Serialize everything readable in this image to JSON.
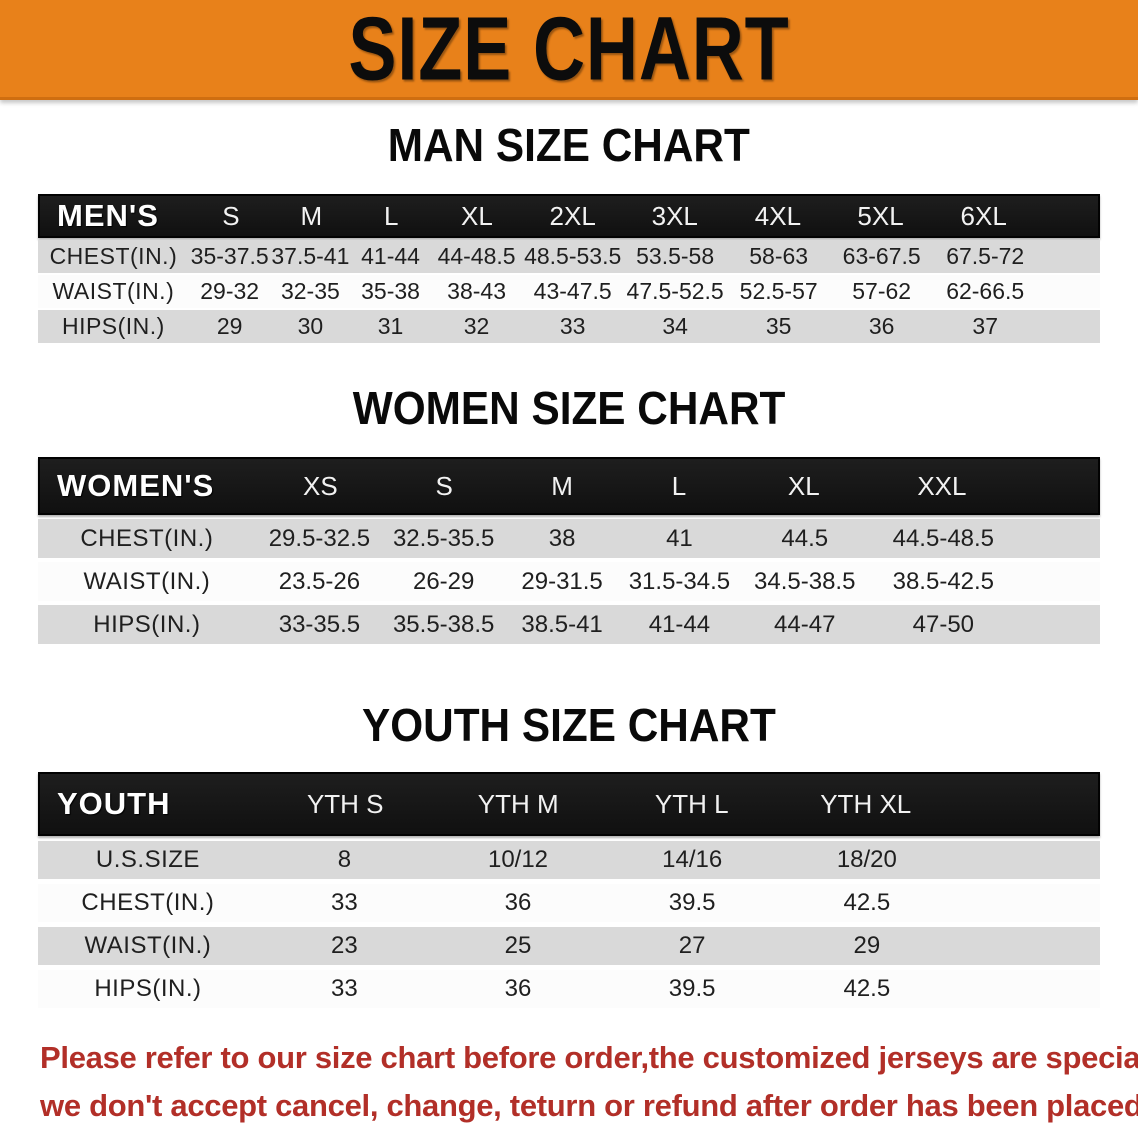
{
  "banner": {
    "title": "SIZE CHART"
  },
  "sections": [
    {
      "id": "men",
      "heading": "MAN SIZE CHART",
      "table": {
        "header": [
          "MEN'S",
          "S",
          "M",
          "L",
          "XL",
          "2XL",
          "3XL",
          "4XL",
          "5XL",
          "6XL"
        ],
        "rows": [
          {
            "label": "CHEST(IN.)",
            "values": [
              "35-37.5",
              "37.5-41",
              "41-44",
              "44-48.5",
              "48.5-53.5",
              "53.5-58",
              "58-63",
              "63-67.5",
              "67.5-72"
            ]
          },
          {
            "label": "WAIST(IN.)",
            "values": [
              "29-32",
              "32-35",
              "35-38",
              "38-43",
              "43-47.5",
              "47.5-52.5",
              "52.5-57",
              "57-62",
              "62-66.5"
            ]
          },
          {
            "label": "HIPS(IN.)",
            "values": [
              "29",
              "30",
              "31",
              "32",
              "33",
              "34",
              "35",
              "36",
              "37"
            ]
          }
        ]
      }
    },
    {
      "id": "women",
      "heading": "WOMEN SIZE CHART",
      "table": {
        "header": [
          "WOMEN'S",
          "XS",
          "S",
          "M",
          "L",
          "XL",
          "XXL"
        ],
        "rows": [
          {
            "label": "CHEST(IN.)",
            "values": [
              "29.5-32.5",
              "32.5-35.5",
              "38",
              "41",
              "44.5",
              "44.5-48.5"
            ]
          },
          {
            "label": "WAIST(IN.)",
            "values": [
              "23.5-26",
              "26-29",
              "29-31.5",
              "31.5-34.5",
              "34.5-38.5",
              "38.5-42.5"
            ]
          },
          {
            "label": "HIPS(IN.)",
            "values": [
              "33-35.5",
              "35.5-38.5",
              "38.5-41",
              "41-44",
              "44-47",
              "47-50"
            ]
          }
        ]
      }
    },
    {
      "id": "youth",
      "heading": "YOUTH SIZE CHART",
      "table": {
        "header": [
          "YOUTH",
          "YTH S",
          "YTH M",
          "YTH L",
          "YTH XL"
        ],
        "rows": [
          {
            "label": "U.S.SIZE",
            "values": [
              "8",
              "10/12",
              "14/16",
              "18/20"
            ]
          },
          {
            "label": "CHEST(IN.)",
            "values": [
              "33",
              "36",
              "39.5",
              "42.5"
            ]
          },
          {
            "label": "WAIST(IN.)",
            "values": [
              "23",
              "25",
              "27",
              "29"
            ]
          },
          {
            "label": "HIPS(IN.)",
            "values": [
              "33",
              "36",
              "39.5",
              "42.5"
            ]
          }
        ]
      }
    }
  ],
  "disclaimer": {
    "line1": "Please refer to our size chart before order,the customized jerseys are special products,",
    "line2": "we don't accept cancel, change, teturn or refund after order has been placed!"
  },
  "colors": {
    "banner_orange": "#e8811a",
    "header_black": "#161616",
    "row_grey": "#d9d9d9",
    "row_white": "#fcfcfc",
    "disclaimer_red": "#b22f28"
  }
}
